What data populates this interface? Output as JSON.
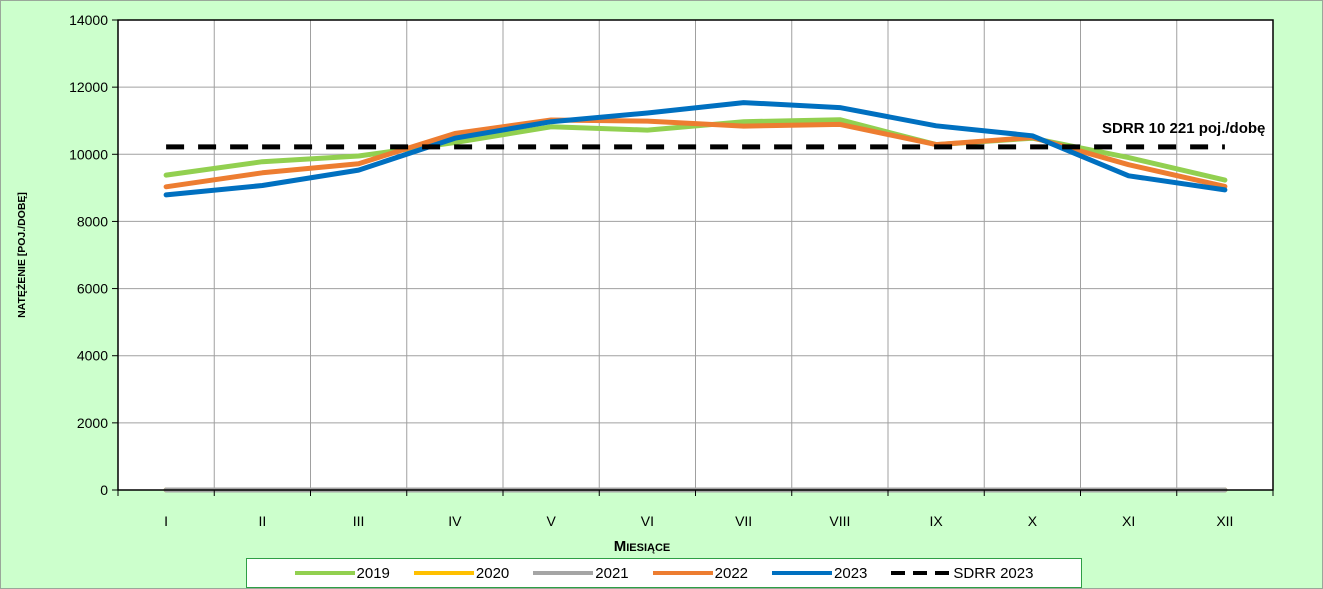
{
  "chart_data": {
    "type": "line",
    "categories": [
      "I",
      "II",
      "III",
      "IV",
      "V",
      "VI",
      "VII",
      "VIII",
      "IX",
      "X",
      "XI",
      "XII"
    ],
    "xlabel": "Miesiące",
    "ylabel": "natężenie [poj./dobę]",
    "ylim": [
      0,
      14000
    ],
    "yticks": [
      0,
      2000,
      4000,
      6000,
      8000,
      10000,
      12000,
      14000
    ],
    "grid": true,
    "legend_position": "bottom",
    "series": [
      {
        "name": "2019",
        "color": "#92d050",
        "style": "solid",
        "values": [
          9380,
          9780,
          9950,
          10350,
          10820,
          10720,
          10970,
          11030,
          10290,
          10480,
          9900,
          9230
        ]
      },
      {
        "name": "2020",
        "color": "#ffc000",
        "style": "solid",
        "values": [
          0,
          0,
          0,
          0,
          0,
          0,
          0,
          0,
          0,
          0,
          0,
          0
        ]
      },
      {
        "name": "2021",
        "color": "#a5a5a5",
        "style": "solid",
        "values": [
          0,
          0,
          0,
          0,
          0,
          0,
          0,
          0,
          0,
          0,
          0,
          0
        ]
      },
      {
        "name": "2022",
        "color": "#ed7d31",
        "style": "solid",
        "values": [
          9030,
          9450,
          9720,
          10620,
          11020,
          10990,
          10840,
          10890,
          10290,
          10500,
          9690,
          9040
        ]
      },
      {
        "name": "2023",
        "color": "#0070c0",
        "style": "solid",
        "values": [
          8790,
          9070,
          9530,
          10480,
          10970,
          11230,
          11540,
          11390,
          10850,
          10550,
          9360,
          8940
        ]
      },
      {
        "name": "SDRR 2023",
        "color": "#000000",
        "style": "dashed",
        "values": [
          10221,
          10221,
          10221,
          10221,
          10221,
          10221,
          10221,
          10221,
          10221,
          10221,
          10221,
          10221
        ]
      }
    ],
    "annotation": {
      "text": "SDRR 10 221 poj./dobę",
      "value": 10221
    }
  }
}
